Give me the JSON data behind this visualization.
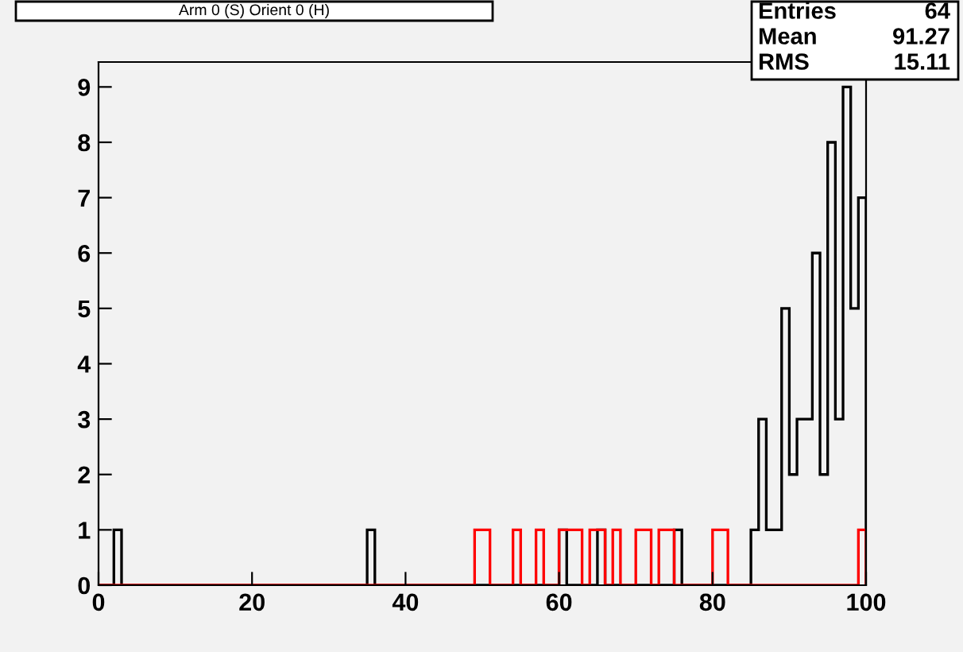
{
  "chart_data": {
    "type": "histogram",
    "title": "Arm 0 (S) Orient 0 (H)",
    "bins": [
      0,
      1,
      2,
      3,
      4,
      5,
      6,
      7,
      8,
      9,
      10,
      11,
      12,
      13,
      14,
      15,
      16,
      17,
      18,
      19,
      20,
      21,
      22,
      23,
      24,
      25,
      26,
      27,
      28,
      29,
      30,
      31,
      32,
      33,
      34,
      35,
      36,
      37,
      38,
      39,
      40,
      41,
      42,
      43,
      44,
      45,
      46,
      47,
      48,
      49,
      50,
      51,
      52,
      53,
      54,
      55,
      56,
      57,
      58,
      59,
      60,
      61,
      62,
      63,
      64,
      65,
      66,
      67,
      68,
      69,
      70,
      71,
      72,
      73,
      74,
      75,
      76,
      77,
      78,
      79,
      80,
      81,
      82,
      83,
      84,
      85,
      86,
      87,
      88,
      89,
      90,
      91,
      92,
      93,
      94,
      95,
      96,
      97,
      98,
      99,
      100
    ],
    "series": [
      {
        "color": "#000000",
        "values": [
          0,
          0,
          1,
          0,
          0,
          0,
          0,
          0,
          0,
          0,
          0,
          0,
          0,
          0,
          0,
          0,
          0,
          0,
          0,
          0,
          0,
          0,
          0,
          0,
          0,
          0,
          0,
          0,
          0,
          0,
          0,
          0,
          0,
          0,
          0,
          1,
          0,
          0,
          0,
          0,
          0,
          0,
          0,
          0,
          0,
          0,
          0,
          0,
          0,
          0,
          0,
          0,
          0,
          0,
          0,
          0,
          0,
          0,
          0,
          0,
          1,
          0,
          0,
          0,
          0,
          1,
          0,
          0,
          0,
          0,
          0,
          0,
          0,
          0,
          0,
          1,
          0,
          0,
          0,
          0,
          0,
          0,
          0,
          0,
          0,
          1,
          3,
          1,
          1,
          5,
          2,
          3,
          3,
          6,
          2,
          8,
          3,
          9,
          5,
          7
        ]
      },
      {
        "color": "#ff0000",
        "values": [
          0,
          0,
          0,
          0,
          0,
          0,
          0,
          0,
          0,
          0,
          0,
          0,
          0,
          0,
          0,
          0,
          0,
          0,
          0,
          0,
          0,
          0,
          0,
          0,
          0,
          0,
          0,
          0,
          0,
          0,
          0,
          0,
          0,
          0,
          0,
          0,
          0,
          0,
          0,
          0,
          0,
          0,
          0,
          0,
          0,
          0,
          0,
          0,
          0,
          1,
          1,
          0,
          0,
          0,
          1,
          0,
          0,
          1,
          0,
          0,
          1,
          1,
          1,
          0,
          1,
          1,
          0,
          1,
          0,
          0,
          1,
          1,
          0,
          1,
          1,
          0,
          0,
          0,
          0,
          0,
          1,
          1,
          0,
          0,
          0,
          0,
          0,
          0,
          0,
          0,
          0,
          0,
          0,
          0,
          0,
          0,
          0,
          0,
          0,
          1
        ]
      }
    ],
    "xlim": [
      0,
      100
    ],
    "xticks": [
      0,
      20,
      40,
      60,
      80,
      100
    ],
    "ylim": [
      0,
      9.45
    ],
    "yticks": [
      0,
      1,
      2,
      3,
      4,
      5,
      6,
      7,
      8,
      9
    ],
    "grid": false,
    "annotations": [
      "Entries",
      "64",
      "Mean",
      "91.27",
      "RMS",
      "15.11"
    ]
  }
}
